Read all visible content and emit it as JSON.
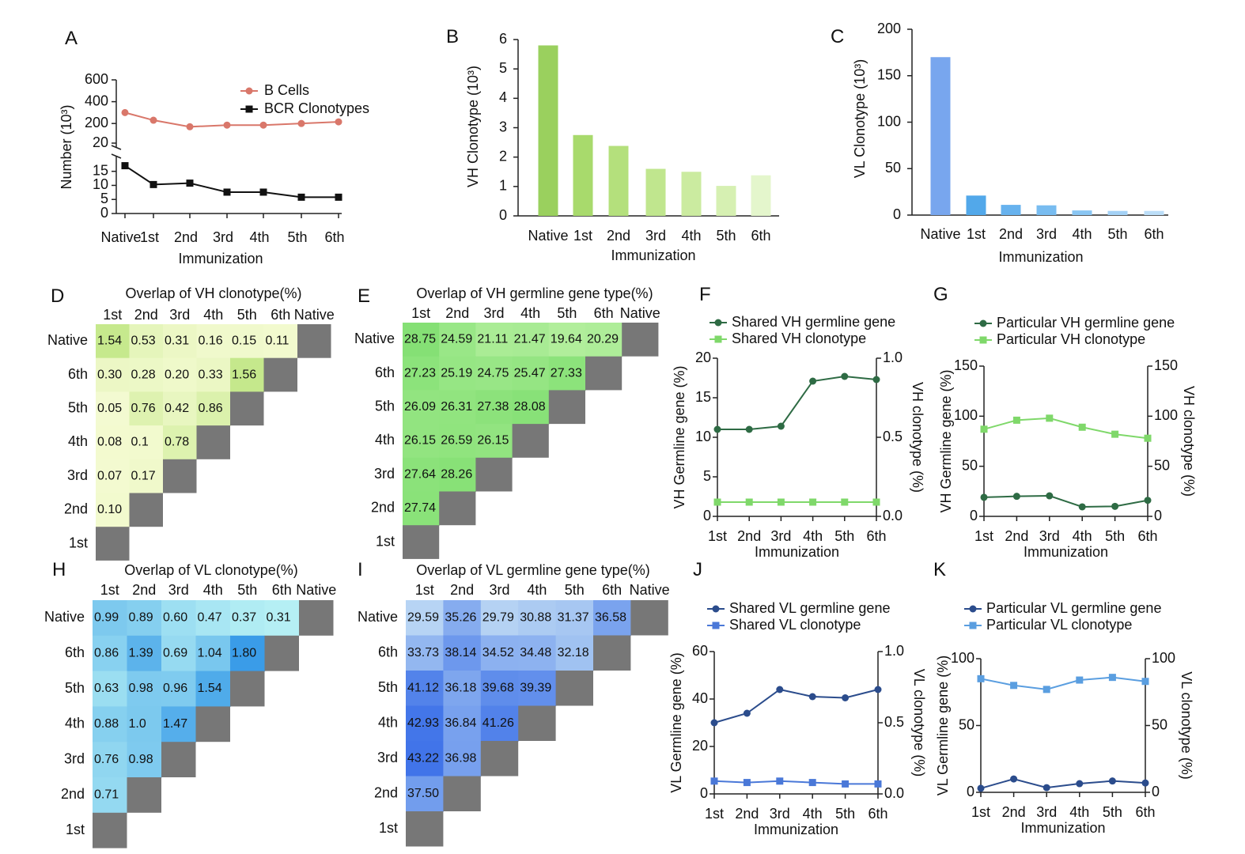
{
  "figure": {
    "title": ""
  },
  "chart_data": [
    {
      "panel": "A",
      "type": "line",
      "categories": [
        "Native",
        "1st",
        "2nd",
        "3rd",
        "4th",
        "5th",
        "6th"
      ],
      "xlabel": "Immunization",
      "ylabel": "Number (10³)",
      "y_ticks_upper": [
        "600",
        "400",
        "200",
        "20"
      ],
      "y_ticks_lower": [
        "15",
        "10",
        "5",
        "0"
      ],
      "axis_break": true,
      "series": [
        {
          "name": "B Cells",
          "color": "#d9776a",
          "marker": "circle",
          "values": [
            300,
            230,
            170,
            185,
            185,
            200,
            215
          ]
        },
        {
          "name": "BCR Clonotypes",
          "color": "#111111",
          "marker": "square",
          "values": [
            17,
            10.3,
            10.8,
            7.6,
            7.6,
            5.8,
            5.8
          ]
        }
      ],
      "legend_position": "top-right"
    },
    {
      "panel": "B",
      "type": "bar",
      "categories": [
        "Native",
        "1st",
        "2nd",
        "3rd",
        "4th",
        "5th",
        "6th"
      ],
      "values": [
        5.8,
        2.75,
        2.38,
        1.6,
        1.5,
        1.02,
        1.38
      ],
      "colors": [
        "#9ad05e",
        "#a8da6c",
        "#b4e07c",
        "#c0e68e",
        "#cbeba0",
        "#d6f0b2",
        "#e4f6cc"
      ],
      "xlabel": "Immunization",
      "ylabel": "VH Clonotype (10³)",
      "ylim": [
        0,
        6
      ],
      "yticks": [
        0,
        1,
        2,
        3,
        4,
        5,
        6
      ]
    },
    {
      "panel": "C",
      "type": "bar",
      "categories": [
        "Native",
        "1st",
        "2nd",
        "3rd",
        "4th",
        "5th",
        "6th"
      ],
      "values": [
        170,
        21,
        11,
        10.5,
        5,
        4.5,
        4.5
      ],
      "colors": [
        "#78a6ee",
        "#52a8ea",
        "#67b2ee",
        "#78bcf0",
        "#8ac6f3",
        "#a4d2f6",
        "#bcdef8"
      ],
      "xlabel": "Immunization",
      "ylabel": "VL Clonotype (10³)",
      "ylim": [
        0,
        200
      ],
      "yticks": [
        0,
        50,
        100,
        150,
        200
      ]
    },
    {
      "panel": "D",
      "type": "heatmap",
      "title": "Overlap of VH clonotype(%)",
      "columns": [
        "1st",
        "2nd",
        "3rd",
        "4th",
        "5th",
        "6th",
        "Native"
      ],
      "rows": [
        "Native",
        "6th",
        "5th",
        "4th",
        "3rd",
        "2nd",
        "1st"
      ],
      "matrix": [
        [
          "1.54",
          "0.53",
          "0.31",
          "0.16",
          "0.15",
          "0.11"
        ],
        [
          "0.30",
          "0.28",
          "0.20",
          "0.33",
          "1.56"
        ],
        [
          "0.05",
          "0.76",
          "0.42",
          "0.86"
        ],
        [
          "0.08",
          "0.1",
          "0.78"
        ],
        [
          "0.07",
          "0.17"
        ],
        [
          "0.10"
        ],
        []
      ],
      "color_min": "#f5fbd3",
      "color_max": "#c4e88a",
      "range": [
        0,
        1.6
      ],
      "diag_color": "#777777"
    },
    {
      "panel": "E",
      "type": "heatmap",
      "title": "Overlap of VH germline gene type(%)",
      "columns": [
        "1st",
        "2nd",
        "3rd",
        "4th",
        "5th",
        "6th",
        "Native"
      ],
      "rows": [
        "Native",
        "6th",
        "5th",
        "4th",
        "3rd",
        "2nd",
        "1st"
      ],
      "matrix": [
        [
          "28.75",
          "24.59",
          "21.11",
          "21.47",
          "19.64",
          "20.29"
        ],
        [
          "27.23",
          "25.19",
          "24.75",
          "25.47",
          "27.33"
        ],
        [
          "26.09",
          "26.31",
          "27.38",
          "28.08"
        ],
        [
          "26.15",
          "26.59",
          "26.15"
        ],
        [
          "27.64",
          "28.26"
        ],
        [
          "27.74"
        ],
        []
      ],
      "color_min": "#b4ef9e",
      "color_max": "#84e074",
      "range": [
        19,
        29
      ],
      "diag_color": "#777777"
    },
    {
      "panel": "F",
      "type": "line",
      "categories": [
        "1st",
        "2nd",
        "3rd",
        "4th",
        "5th",
        "6th"
      ],
      "xlabel": "Immunization",
      "ylabel": "VH Germline gene (%)",
      "y2label": "VH clonotype (%)",
      "ylim": [
        0,
        20
      ],
      "yticks": [
        0,
        5,
        10,
        15,
        20
      ],
      "y2lim": [
        0,
        1
      ],
      "y2ticks": [
        "0.0",
        "0.5",
        "1.0"
      ],
      "series": [
        {
          "name": "Shared VH germline gene",
          "color": "#2e6b44",
          "marker": "circle",
          "axis": "left",
          "values": [
            11,
            11,
            11.4,
            17.1,
            17.7,
            17.3
          ]
        },
        {
          "name": "Shared VH clonotype",
          "color": "#7fd86a",
          "marker": "square",
          "axis": "right",
          "values": [
            0.09,
            0.09,
            0.09,
            0.09,
            0.09,
            0.09
          ]
        }
      ],
      "legend_position": "top"
    },
    {
      "panel": "G",
      "type": "line",
      "categories": [
        "1st",
        "2nd",
        "3rd",
        "4th",
        "5th",
        "6th"
      ],
      "xlabel": "Immunization",
      "ylabel": "VH Germline gene (%)",
      "y2label": "VH clonotype (%)",
      "ylim": [
        0,
        150
      ],
      "yticks": [
        0,
        50,
        100,
        150
      ],
      "y2lim": [
        0,
        150
      ],
      "y2ticks": [
        "0",
        "50",
        "100",
        "150"
      ],
      "series": [
        {
          "name": "Particular VH germline gene",
          "color": "#2e6b44",
          "marker": "circle",
          "axis": "left",
          "values": [
            19,
            20,
            20.5,
            9.5,
            10,
            16
          ]
        },
        {
          "name": "Particular VH clonotype",
          "color": "#7fd86a",
          "marker": "square",
          "axis": "right",
          "values": [
            87,
            96,
            98,
            89,
            82,
            78
          ]
        }
      ],
      "legend_position": "top"
    },
    {
      "panel": "H",
      "type": "heatmap",
      "title": "Overlap of VL clonotype(%)",
      "columns": [
        "1st",
        "2nd",
        "3rd",
        "4th",
        "5th",
        "6th",
        "Native"
      ],
      "rows": [
        "Native",
        "6th",
        "5th",
        "4th",
        "3rd",
        "2nd",
        "1st"
      ],
      "matrix": [
        [
          "0.99",
          "0.89",
          "0.60",
          "0.47",
          "0.37",
          "0.31"
        ],
        [
          "0.86",
          "1.39",
          "0.69",
          "1.04",
          "1.80"
        ],
        [
          "0.63",
          "0.98",
          "0.96",
          "1.54"
        ],
        [
          "0.88",
          "1.0",
          "1.47"
        ],
        [
          "0.76",
          "0.98"
        ],
        [
          "0.71"
        ],
        []
      ],
      "color_min": "#b6f0f4",
      "color_max": "#3a9ce8",
      "range": [
        0.3,
        1.8
      ],
      "diag_color": "#777777"
    },
    {
      "panel": "I",
      "type": "heatmap",
      "title": "Overlap of VL germline gene type(%)",
      "columns": [
        "1st",
        "2nd",
        "3rd",
        "4th",
        "5th",
        "6th",
        "Native"
      ],
      "rows": [
        "Native",
        "6th",
        "5th",
        "4th",
        "3rd",
        "2nd",
        "1st"
      ],
      "matrix": [
        [
          "29.59",
          "35.26",
          "29.79",
          "30.88",
          "31.37",
          "36.58"
        ],
        [
          "33.73",
          "38.14",
          "34.52",
          "34.48",
          "32.18"
        ],
        [
          "41.12",
          "36.18",
          "39.68",
          "39.39"
        ],
        [
          "42.93",
          "36.84",
          "41.26"
        ],
        [
          "43.22",
          "36.98"
        ],
        [
          "37.50"
        ],
        []
      ],
      "color_min": "#bcd8f4",
      "color_max": "#3a6fe8",
      "range": [
        29,
        44
      ],
      "diag_color": "#777777"
    },
    {
      "panel": "J",
      "type": "line",
      "categories": [
        "1st",
        "2nd",
        "3rd",
        "4th",
        "5th",
        "6th"
      ],
      "xlabel": "Immunization",
      "ylabel": "VL Germline gene (%)",
      "y2label": "VL clonotype (%)",
      "ylim": [
        0,
        60
      ],
      "yticks": [
        0,
        20,
        40,
        60
      ],
      "y2lim": [
        0,
        1
      ],
      "y2ticks": [
        "0.0",
        "0.5",
        "1.0"
      ],
      "series": [
        {
          "name": "Shared VL germline gene",
          "color": "#2b4c8c",
          "marker": "circle",
          "axis": "left",
          "values": [
            30,
            34,
            44,
            41,
            40.5,
            44
          ]
        },
        {
          "name": "Shared VL clonotype",
          "color": "#4a78d8",
          "marker": "square",
          "axis": "right",
          "values": [
            0.09,
            0.08,
            0.09,
            0.08,
            0.07,
            0.07
          ]
        }
      ],
      "legend_position": "top"
    },
    {
      "panel": "K",
      "type": "line",
      "categories": [
        "1st",
        "2nd",
        "3rd",
        "4th",
        "5th",
        "6th"
      ],
      "xlabel": "Immunization",
      "ylabel": "VL Germline gene (%)",
      "y2label": "VL clonotype (%)",
      "ylim": [
        0,
        100
      ],
      "yticks": [
        0,
        50,
        100
      ],
      "y2lim": [
        0,
        100
      ],
      "y2ticks": [
        "0",
        "50",
        "100"
      ],
      "series": [
        {
          "name": "Particular VL germline gene",
          "color": "#2b4c8c",
          "marker": "circle",
          "axis": "left",
          "values": [
            3,
            10,
            3.5,
            6.5,
            8.5,
            7
          ]
        },
        {
          "name": "Particular VL clonotype",
          "color": "#5a9ee0",
          "marker": "square",
          "axis": "right",
          "values": [
            85,
            80,
            77,
            84,
            86,
            83
          ]
        }
      ],
      "legend_position": "top"
    }
  ]
}
